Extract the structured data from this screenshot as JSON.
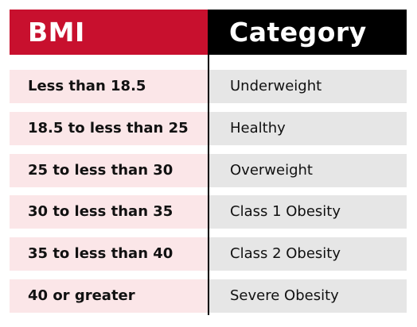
{
  "header": {
    "bmi_label": "BMI",
    "category_label": "Category"
  },
  "rows": [
    {
      "bmi": "Less than 18.5",
      "category": "Underweight"
    },
    {
      "bmi": "18.5 to less than 25",
      "category": "Healthy"
    },
    {
      "bmi": "25 to less than 30",
      "category": "Overweight"
    },
    {
      "bmi": "30 to less than 35",
      "category": "Class 1 Obesity"
    },
    {
      "bmi": "35 to less than 40",
      "category": "Class 2 Obesity"
    },
    {
      "bmi": "40 or greater",
      "category": "Severe Obesity"
    }
  ],
  "colors": {
    "bmi_header_bg": "#c8102e",
    "category_header_bg": "#000000",
    "bmi_cell_bg": "#fbe6e8",
    "category_cell_bg": "#e6e6e6"
  }
}
